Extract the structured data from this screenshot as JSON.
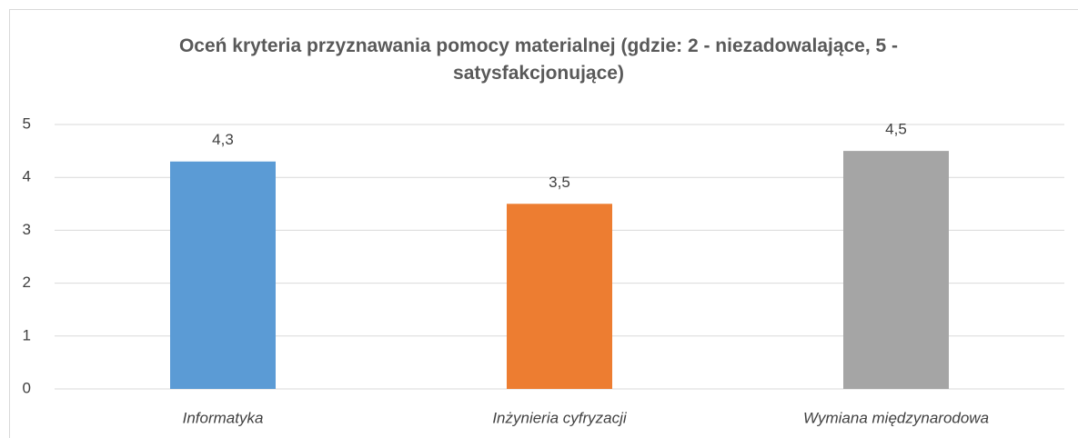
{
  "chart_data": {
    "type": "bar",
    "title": "Oceń kryteria przyznawania pomocy materialnej (gdzie: 2 - niezadowalające, 5 - satysfakcjonujące)",
    "categories": [
      "Informatyka",
      "Inżynieria cyfryzacji",
      "Wymiana międzynarodowa"
    ],
    "values": [
      4.3,
      3.5,
      4.5
    ],
    "value_labels": [
      "4,3",
      "3,5",
      "4,5"
    ],
    "colors": [
      "#5b9bd5",
      "#ed7d31",
      "#a5a5a5"
    ],
    "ylim": [
      0,
      5
    ],
    "yticks": [
      0,
      1,
      2,
      3,
      4,
      5
    ],
    "grid": true
  }
}
